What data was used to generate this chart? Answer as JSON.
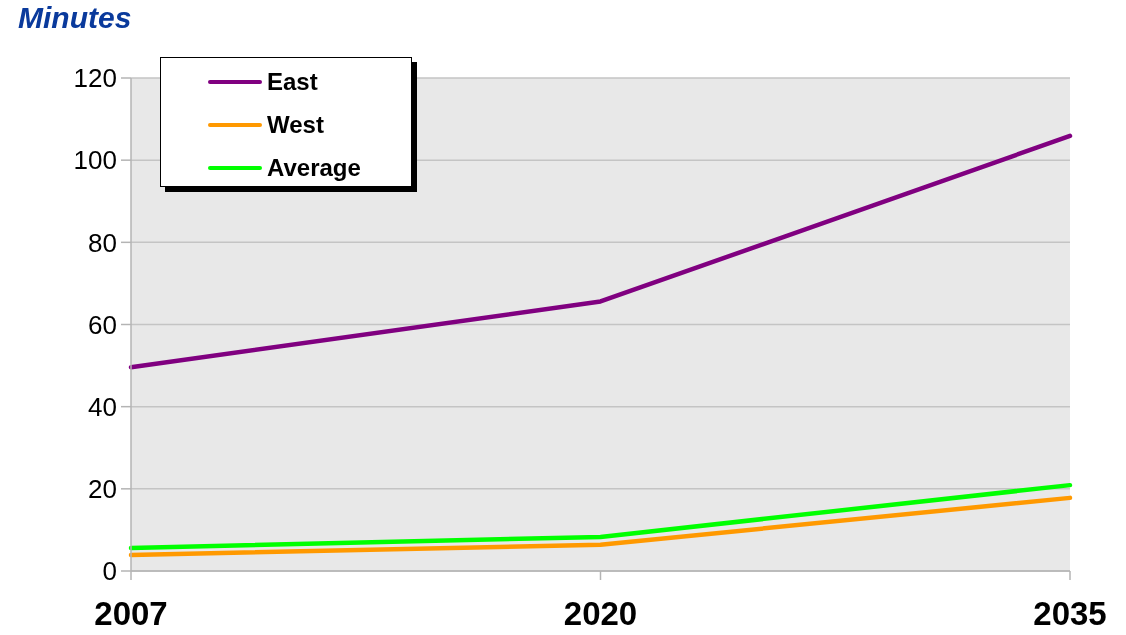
{
  "chart_data": {
    "type": "line",
    "ylabel": "Minutes",
    "categories": [
      "2007",
      "2020",
      "2035"
    ],
    "series": [
      {
        "name": "East",
        "color": "#800080",
        "values": [
          49.6,
          65.6,
          105.9
        ]
      },
      {
        "name": "West",
        "color": "#ff9900",
        "values": [
          3.9,
          6.4,
          17.8
        ]
      },
      {
        "name": "Average",
        "color": "#00ff00",
        "values": [
          5.6,
          8.3,
          20.9
        ]
      }
    ],
    "ylim": [
      0,
      120
    ],
    "yticks": [
      0,
      20,
      40,
      60,
      80,
      100,
      120
    ],
    "grid": "y",
    "legend": "top left",
    "line_style": "solid"
  }
}
